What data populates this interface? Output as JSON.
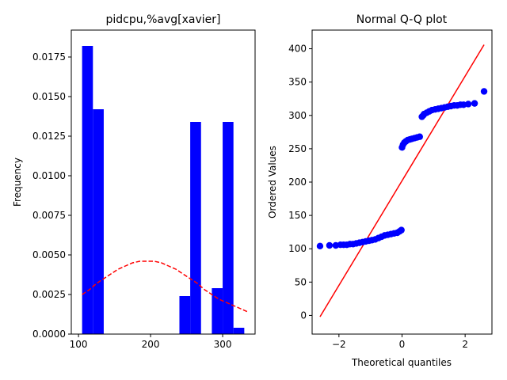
{
  "chart_data": [
    {
      "type": "bar",
      "title": "pidcpu,%avg[xavier]",
      "xlabel": "",
      "ylabel": "Frequency",
      "xlim": [
        90,
        345
      ],
      "ylim": [
        0,
        0.0192
      ],
      "xticks": [
        100,
        200,
        300
      ],
      "xtick_labels": [
        "100",
        "200",
        "300"
      ],
      "yticks": [
        0,
        0.0025,
        0.005,
        0.0075,
        0.01,
        0.0125,
        0.015,
        0.0175
      ],
      "ytick_labels": [
        "0.0000",
        "0.0025",
        "0.0050",
        "0.0075",
        "0.0100",
        "0.0125",
        "0.0150",
        "0.0175"
      ],
      "bin_edges": [
        105,
        120,
        135,
        150,
        165,
        180,
        195,
        210,
        225,
        240,
        255,
        270,
        285,
        300,
        315,
        330
      ],
      "values": [
        0.0182,
        0.0142,
        0,
        0,
        0,
        0,
        0,
        0,
        0,
        0.0024,
        0.0134,
        0,
        0.0029,
        0.0134,
        0.0004
      ],
      "bar_color": "#0000ff",
      "fit_curve": {
        "style": "dashed",
        "color": "#ff0000",
        "x": [
          105,
          115,
          125,
          135,
          145,
          155,
          165,
          175,
          185,
          195,
          205,
          215,
          225,
          235,
          245,
          255,
          265,
          275,
          285,
          295,
          305,
          315,
          325,
          335
        ],
        "y": [
          0.0025,
          0.0028,
          0.0032,
          0.0035,
          0.0038,
          0.0041,
          0.0043,
          0.0045,
          0.0046,
          0.0046,
          0.0046,
          0.0045,
          0.0043,
          0.0041,
          0.0038,
          0.0035,
          0.0032,
          0.0028,
          0.0025,
          0.0022,
          0.002,
          0.0018,
          0.0016,
          0.0014
        ]
      }
    },
    {
      "type": "scatter",
      "title": "Normal Q-Q plot",
      "xlabel": "Theoretical quantiles",
      "ylabel": "Ordered Values",
      "xlim": [
        -2.85,
        2.85
      ],
      "ylim": [
        -28,
        428
      ],
      "xticks": [
        -2,
        0,
        2
      ],
      "xtick_labels": [
        "−2",
        "0",
        "2"
      ],
      "yticks": [
        0,
        50,
        100,
        150,
        200,
        250,
        300,
        350,
        400
      ],
      "ytick_labels": [
        "0",
        "50",
        "100",
        "150",
        "200",
        "250",
        "300",
        "350",
        "400"
      ],
      "marker_color": "#0000ff",
      "points_x": [
        -2.6,
        -2.3,
        -2.1,
        -1.95,
        -1.85,
        -1.75,
        -1.65,
        -1.55,
        -1.45,
        -1.35,
        -1.25,
        -1.15,
        -1.05,
        -0.95,
        -0.85,
        -0.75,
        -0.65,
        -0.55,
        -0.45,
        -0.35,
        -0.25,
        -0.15,
        -0.08,
        -0.02,
        0.0,
        0.03,
        0.07,
        0.12,
        0.18,
        0.25,
        0.32,
        0.4,
        0.48,
        0.56,
        0.63,
        0.67,
        0.7,
        0.78,
        0.86,
        0.95,
        1.05,
        1.15,
        1.25,
        1.35,
        1.45,
        1.55,
        1.65,
        1.75,
        1.85,
        1.95,
        2.1,
        2.3,
        2.6
      ],
      "points_y": [
        104,
        105,
        105,
        106,
        106,
        106,
        107,
        107,
        108,
        109,
        110,
        111,
        112,
        113,
        114,
        116,
        118,
        120,
        121,
        122,
        123,
        124,
        126,
        128,
        252,
        256,
        259,
        261,
        263,
        264,
        265,
        266,
        267,
        268,
        298,
        300,
        302,
        304,
        306,
        308,
        309,
        310,
        311,
        312,
        313,
        314,
        315,
        315,
        316,
        316,
        317,
        318,
        336
      ],
      "fit_line": {
        "x": [
          -2.6,
          2.6
        ],
        "y": [
          -2,
          406
        ],
        "color": "#ff0000"
      }
    }
  ]
}
